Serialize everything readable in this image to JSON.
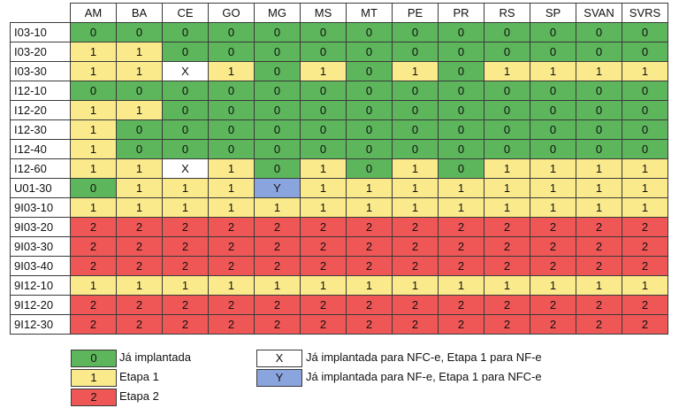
{
  "columns": [
    "AM",
    "BA",
    "CE",
    "GO",
    "MG",
    "MS",
    "MT",
    "PE",
    "PR",
    "RS",
    "SP",
    "SVAN",
    "SVRS"
  ],
  "rows": [
    {
      "label": "I03-10",
      "values": [
        "0",
        "0",
        "0",
        "0",
        "0",
        "0",
        "0",
        "0",
        "0",
        "0",
        "0",
        "0",
        "0"
      ]
    },
    {
      "label": "I03-20",
      "values": [
        "1",
        "1",
        "0",
        "0",
        "0",
        "0",
        "0",
        "0",
        "0",
        "0",
        "0",
        "0",
        "0"
      ]
    },
    {
      "label": "I03-30",
      "values": [
        "1",
        "1",
        "X",
        "1",
        "0",
        "1",
        "0",
        "1",
        "0",
        "1",
        "1",
        "1",
        "1"
      ]
    },
    {
      "label": "I12-10",
      "values": [
        "0",
        "0",
        "0",
        "0",
        "0",
        "0",
        "0",
        "0",
        "0",
        "0",
        "0",
        "0",
        "0"
      ]
    },
    {
      "label": "I12-20",
      "values": [
        "1",
        "1",
        "0",
        "0",
        "0",
        "0",
        "0",
        "0",
        "0",
        "0",
        "0",
        "0",
        "0"
      ]
    },
    {
      "label": "I12-30",
      "values": [
        "1",
        "0",
        "0",
        "0",
        "0",
        "0",
        "0",
        "0",
        "0",
        "0",
        "0",
        "0",
        "0"
      ]
    },
    {
      "label": "I12-40",
      "values": [
        "1",
        "0",
        "0",
        "0",
        "0",
        "0",
        "0",
        "0",
        "0",
        "0",
        "0",
        "0",
        "0"
      ]
    },
    {
      "label": "I12-60",
      "values": [
        "1",
        "1",
        "X",
        "1",
        "0",
        "1",
        "0",
        "1",
        "0",
        "1",
        "1",
        "1",
        "1"
      ]
    },
    {
      "label": "U01-30",
      "values": [
        "0",
        "1",
        "1",
        "1",
        "Y",
        "1",
        "1",
        "1",
        "1",
        "1",
        "1",
        "1",
        "1"
      ]
    },
    {
      "label": "9I03-10",
      "values": [
        "1",
        "1",
        "1",
        "1",
        "1",
        "1",
        "1",
        "1",
        "1",
        "1",
        "1",
        "1",
        "1"
      ]
    },
    {
      "label": "9I03-20",
      "values": [
        "2",
        "2",
        "2",
        "2",
        "2",
        "2",
        "2",
        "2",
        "2",
        "2",
        "2",
        "2",
        "2"
      ]
    },
    {
      "label": "9I03-30",
      "values": [
        "2",
        "2",
        "2",
        "2",
        "2",
        "2",
        "2",
        "2",
        "2",
        "2",
        "2",
        "2",
        "2"
      ]
    },
    {
      "label": "9I03-40",
      "values": [
        "2",
        "2",
        "2",
        "2",
        "2",
        "2",
        "2",
        "2",
        "2",
        "2",
        "2",
        "2",
        "2"
      ]
    },
    {
      "label": "9I12-10",
      "values": [
        "1",
        "1",
        "1",
        "1",
        "1",
        "1",
        "1",
        "1",
        "1",
        "1",
        "1",
        "1",
        "1"
      ]
    },
    {
      "label": "9I12-20",
      "values": [
        "2",
        "2",
        "2",
        "2",
        "2",
        "2",
        "2",
        "2",
        "2",
        "2",
        "2",
        "2",
        "2"
      ]
    },
    {
      "label": "9I12-30",
      "values": [
        "2",
        "2",
        "2",
        "2",
        "2",
        "2",
        "2",
        "2",
        "2",
        "2",
        "2",
        "2",
        "2"
      ]
    }
  ],
  "legend": {
    "code_0": "0",
    "label_0": "Já implantada",
    "code_1": "1",
    "label_1": "Etapa 1",
    "code_2": "2",
    "label_2": "Etapa 2",
    "code_X": "X",
    "label_X": "Já implantada para NFC-e, Etapa 1 para NF-e",
    "code_Y": "Y",
    "label_Y": "Já implantada para NF-e, Etapa 1 para NFC-e"
  },
  "colors": {
    "0": "#5db65b",
    "1": "#fbea8c",
    "2": "#ef5756",
    "X": "#ffffff",
    "Y": "#8aa5dd"
  }
}
